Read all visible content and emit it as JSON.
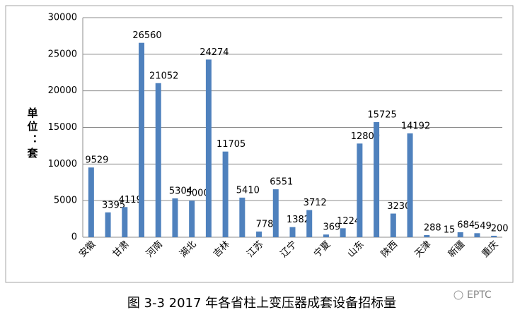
{
  "chart_data": {
    "type": "bar",
    "title": "图 3-3 2017 年各省柱上变压器成套设备招标量",
    "y_label": "单位：套",
    "watermark": "EPTC",
    "categories": [
      "安徽",
      null,
      "甘肃",
      null,
      "河南",
      null,
      "湖北",
      null,
      "吉林",
      null,
      "江苏",
      null,
      "辽宁",
      null,
      "宁夏",
      null,
      "山东",
      null,
      "陕西",
      null,
      "天津",
      null,
      "新疆",
      null,
      "重庆"
    ],
    "values": [
      9529,
      3395,
      4119,
      26560,
      21052,
      5304,
      5000,
      24274,
      11705,
      5410,
      778,
      6551,
      1382,
      3712,
      369,
      1224,
      12800,
      15725,
      3230,
      14192,
      288,
      15,
      684,
      549,
      200
    ],
    "color": "#4f81bd",
    "ylim": [
      0,
      30000
    ],
    "yticks": [
      0,
      5000,
      10000,
      15000,
      20000,
      25000,
      30000
    ],
    "grid": true
  }
}
